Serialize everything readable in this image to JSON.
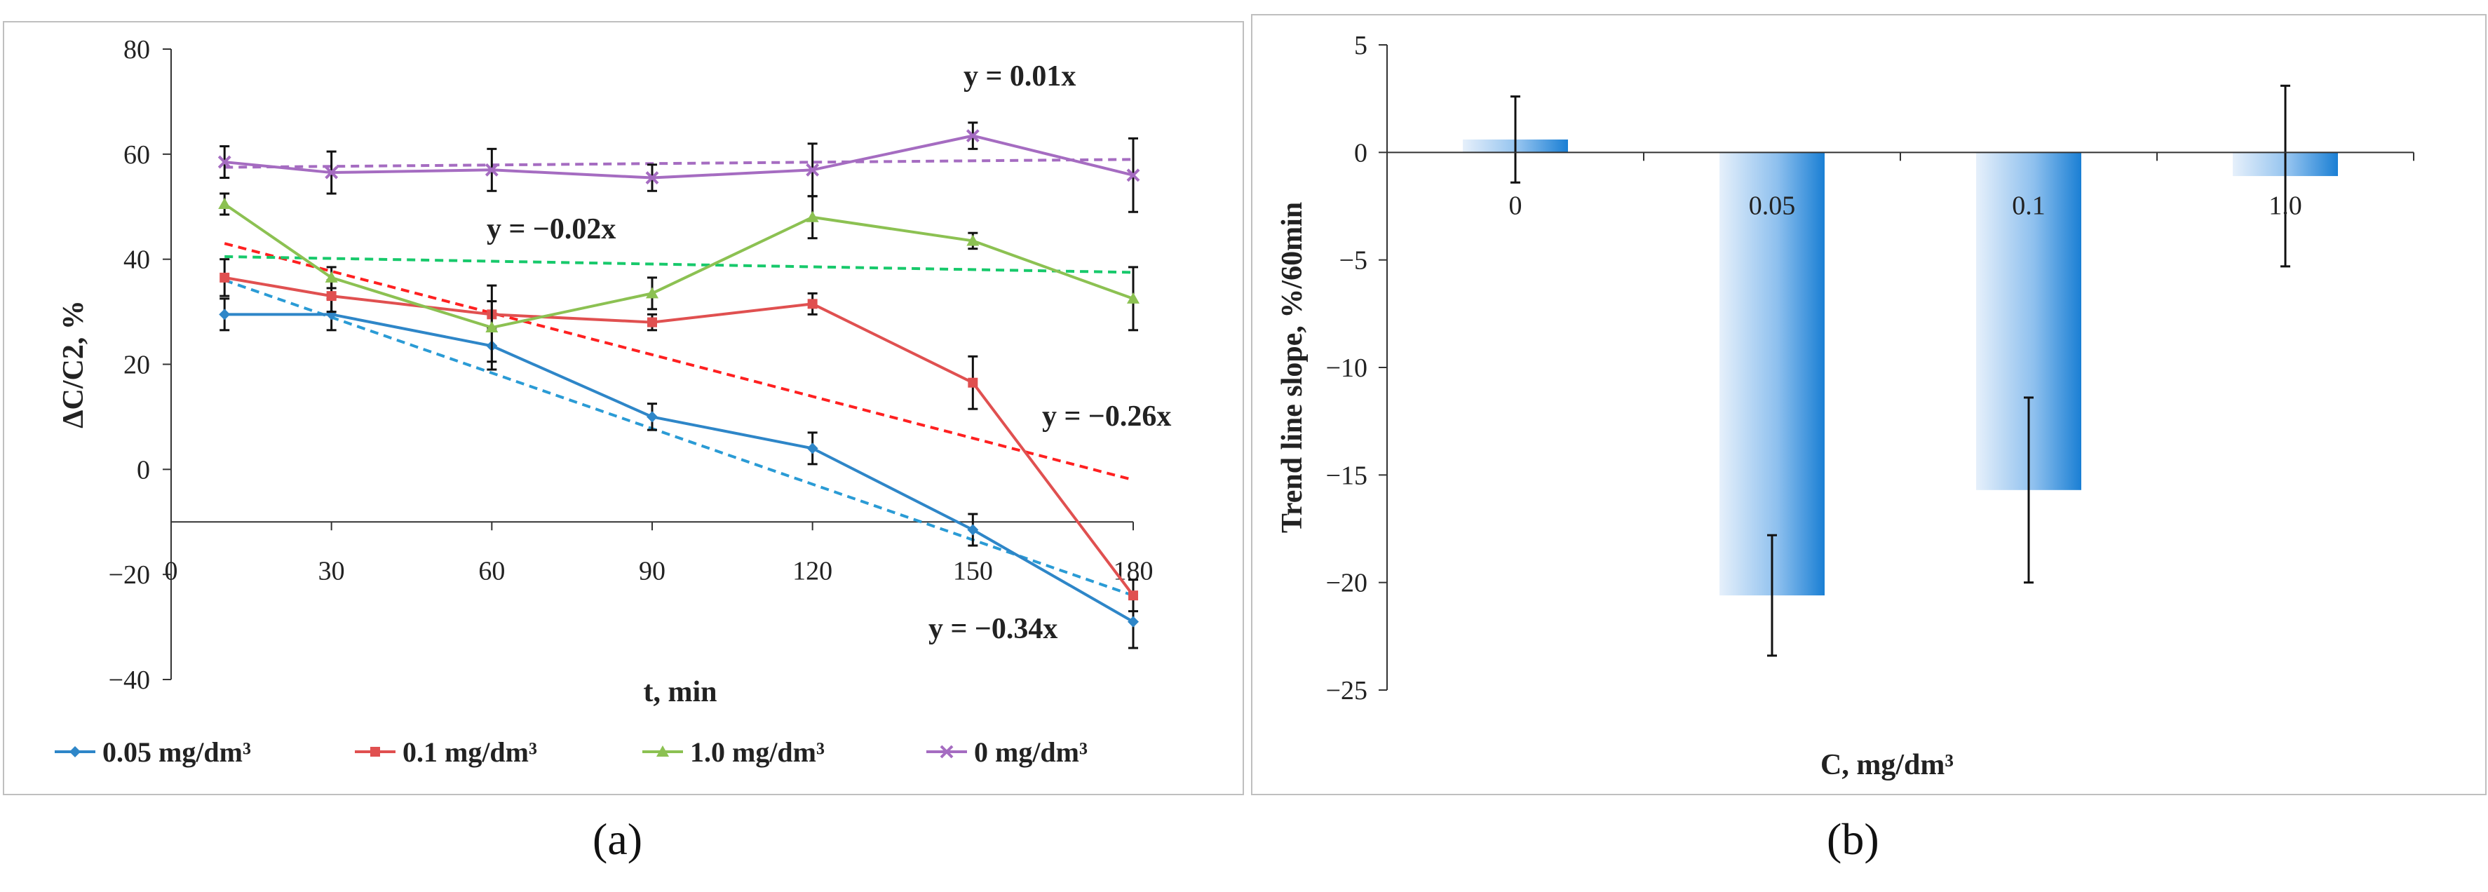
{
  "captions": {
    "a": "(a)",
    "b": "(b)"
  },
  "chart_data": [
    {
      "type": "line",
      "panel": "a",
      "title": "",
      "xlabel": "t, min",
      "ylabel": "ΔC/C2, %",
      "xlim": [
        0,
        180
      ],
      "ylim": [
        -40,
        80
      ],
      "yticks": [
        -40,
        -20,
        0,
        20,
        40,
        60,
        80
      ],
      "xticks": [
        0,
        30,
        60,
        90,
        120,
        150,
        180
      ],
      "x_axis_crosses_y_at": -10,
      "x": [
        10,
        30,
        60,
        90,
        120,
        150,
        180
      ],
      "series": [
        {
          "name": "0.05 mg/dm³",
          "color": "#2e86c8",
          "marker": "diamond",
          "values": [
            29.5,
            29.5,
            23.5,
            10,
            4,
            -11.5,
            -29
          ],
          "errors": [
            3,
            3,
            3,
            2.5,
            3,
            3,
            5
          ],
          "trend": {
            "label": "y = −0.34x",
            "y0": 36,
            "y1": -24
          }
        },
        {
          "name": "0.1 mg/dm³",
          "color": "#e05050",
          "marker": "square",
          "values": [
            36.5,
            33,
            29.5,
            28,
            31.5,
            16.5,
            -24
          ],
          "errors": [
            3.5,
            3,
            2.5,
            1.5,
            2,
            5,
            3
          ],
          "trend": {
            "label": "y = −0.26x",
            "y0": 43,
            "y1": -2
          }
        },
        {
          "name": "1.0 mg/dm³",
          "color": "#8cc152",
          "marker": "triangle",
          "values": [
            50.5,
            36.5,
            27,
            33.5,
            48,
            43.5,
            32.5
          ],
          "errors": [
            2,
            2,
            8,
            3,
            4,
            1.5,
            6
          ],
          "trend": {
            "label": "y = −0.02x",
            "y0": 40.5,
            "y1": 37.5
          }
        },
        {
          "name": "0 mg/dm³",
          "color": "#a56cc1",
          "marker": "cross",
          "values": [
            58.5,
            56.5,
            57,
            55.5,
            57,
            63.5,
            56
          ],
          "errors": [
            3,
            4,
            4,
            2.5,
            5,
            2.5,
            7
          ],
          "trend": {
            "label": "y = 0.01x",
            "y0": 57.5,
            "y1": 59
          }
        }
      ],
      "trend_colors": [
        "#2a9bd5",
        "#ff2020",
        "#17c96b",
        "#a56cc1"
      ],
      "legend_position": "bottom"
    },
    {
      "type": "bar",
      "panel": "b",
      "title": "",
      "xlabel": "C, mg/dm³",
      "ylabel": "Trend line slope, %/60min",
      "categories": [
        "0",
        "0.05",
        "0.1",
        "1.0"
      ],
      "values": [
        0.6,
        -20.6,
        -15.7,
        -1.1
      ],
      "errors": [
        2,
        2.8,
        4.3,
        4.2
      ],
      "ylim": [
        -25,
        5
      ],
      "yticks": [
        -25,
        -20,
        -15,
        -10,
        -5,
        0,
        5
      ],
      "bar_color": "#1a7fd4"
    }
  ]
}
